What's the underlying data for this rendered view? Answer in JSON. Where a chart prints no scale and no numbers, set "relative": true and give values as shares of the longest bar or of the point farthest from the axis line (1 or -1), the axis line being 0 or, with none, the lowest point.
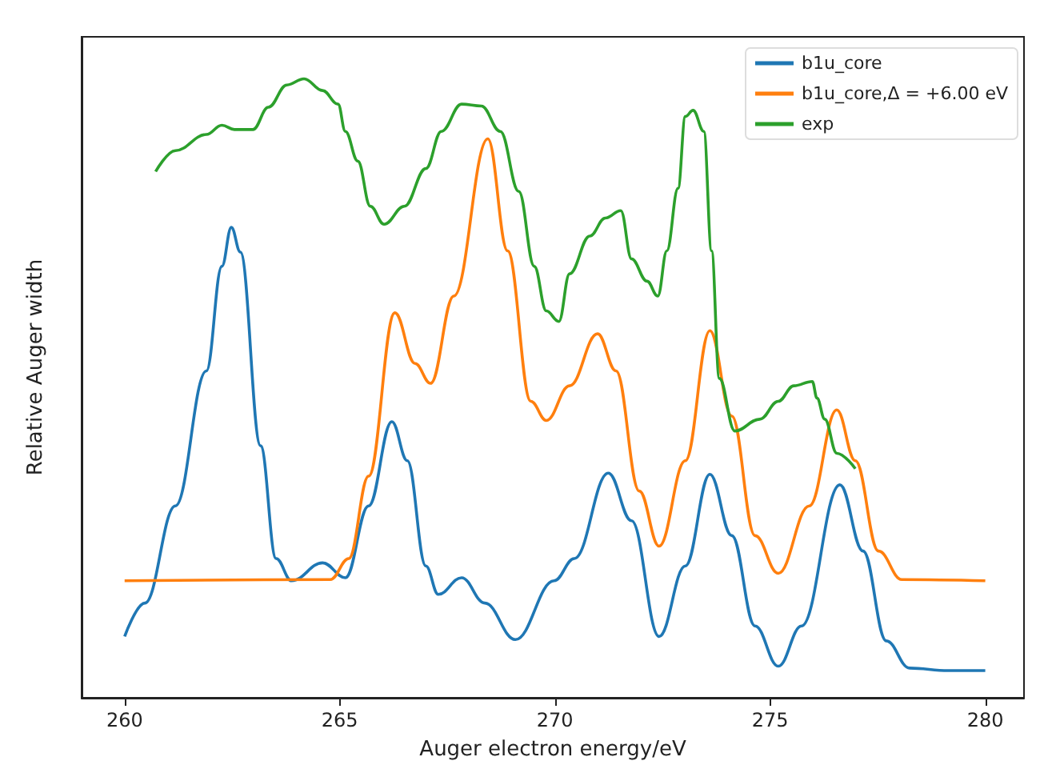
{
  "chart_data": {
    "type": "line",
    "relative": true,
    "xlabel": "Auger electron energy/eV",
    "ylabel": "Relative Auger width",
    "xlim": [
      259,
      280.9
    ],
    "xticks": [
      260,
      265,
      270,
      275,
      280
    ],
    "legend": "top right",
    "grid": false,
    "marker": "none",
    "line_style": "solid",
    "series": [
      {
        "name": "b1u_core",
        "color": "#1f77b4",
        "x": [
          260,
          260.47,
          261.18,
          261.9,
          262.26,
          262.48,
          262.69,
          263.16,
          263.52,
          263.88,
          264.6,
          265.13,
          265.67,
          266.21,
          266.57,
          267.0,
          267.29,
          267.83,
          268.37,
          269.08,
          269.98,
          270.45,
          271.24,
          271.78,
          272.42,
          273.03,
          273.6,
          274.11,
          274.65,
          275.19,
          275.73,
          276.62,
          277.16,
          277.7,
          278.24,
          279.14,
          280
        ],
        "values": [
          0.099,
          0.153,
          0.31,
          0.528,
          0.697,
          0.76,
          0.72,
          0.407,
          0.225,
          0.189,
          0.218,
          0.194,
          0.31,
          0.446,
          0.383,
          0.213,
          0.167,
          0.194,
          0.153,
          0.094,
          0.189,
          0.225,
          0.363,
          0.286,
          0.099,
          0.213,
          0.361,
          0.262,
          0.116,
          0.051,
          0.116,
          0.344,
          0.237,
          0.092,
          0.048,
          0.044,
          0.044
        ]
      },
      {
        "name": "b1u_core,Δ = +6.00 eV",
        "color": "#ff7f0e",
        "x": [
          260,
          264.78,
          265.21,
          265.67,
          266.28,
          266.75,
          267.11,
          267.65,
          268.44,
          268.9,
          269.44,
          269.8,
          270.34,
          270.99,
          271.42,
          271.96,
          272.42,
          273.03,
          273.6,
          274.11,
          274.65,
          275.19,
          275.91,
          276.55,
          276.98,
          277.52,
          278.06,
          280
        ],
        "values": [
          0.189,
          0.191,
          0.225,
          0.358,
          0.622,
          0.54,
          0.508,
          0.649,
          0.903,
          0.722,
          0.479,
          0.448,
          0.504,
          0.588,
          0.528,
          0.334,
          0.245,
          0.383,
          0.593,
          0.455,
          0.262,
          0.201,
          0.31,
          0.465,
          0.383,
          0.237,
          0.191,
          0.189
        ]
      },
      {
        "name": "exp",
        "color": "#2ca02c",
        "x": [
          260.72,
          261.18,
          261.9,
          262.26,
          262.55,
          262.98,
          263.34,
          263.77,
          264.17,
          264.6,
          264.96,
          265.13,
          265.42,
          265.71,
          266.03,
          266.5,
          267.0,
          267.36,
          267.83,
          268.29,
          268.73,
          269.16,
          269.52,
          269.8,
          270.09,
          270.34,
          270.81,
          271.17,
          271.53,
          271.78,
          272.14,
          272.39,
          272.6,
          272.86,
          273.03,
          273.21,
          273.46,
          273.64,
          273.82,
          274.18,
          274.76,
          275.19,
          275.55,
          275.98,
          276.09,
          276.27,
          276.55,
          276.98
        ],
        "values": [
          0.85,
          0.884,
          0.91,
          0.925,
          0.918,
          0.918,
          0.954,
          0.99,
          1.0,
          0.981,
          0.959,
          0.915,
          0.867,
          0.794,
          0.765,
          0.794,
          0.855,
          0.915,
          0.959,
          0.956,
          0.915,
          0.818,
          0.697,
          0.625,
          0.608,
          0.685,
          0.746,
          0.775,
          0.787,
          0.709,
          0.673,
          0.649,
          0.722,
          0.823,
          0.939,
          0.949,
          0.915,
          0.722,
          0.516,
          0.431,
          0.45,
          0.479,
          0.504,
          0.511,
          0.484,
          0.45,
          0.395,
          0.37
        ]
      }
    ]
  }
}
